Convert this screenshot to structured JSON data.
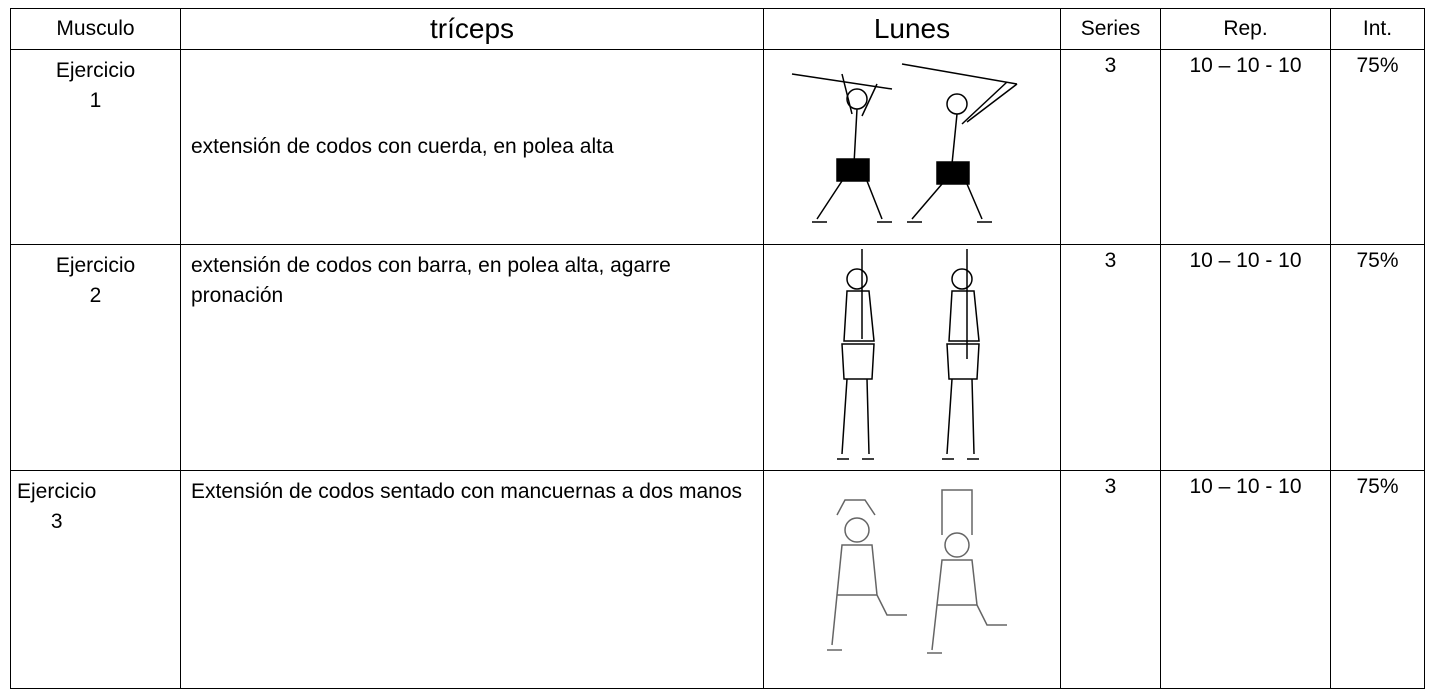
{
  "table": {
    "header": [
      "Musculo",
      "tríceps",
      "Lunes",
      "Series",
      "Rep.",
      "Int."
    ],
    "rows": [
      {
        "label": "Ejercicio 1",
        "exercise": "extensión de codos con cuerda, en polea alta",
        "series": "3",
        "rep": "10 – 10 - 10",
        "int": "75%"
      },
      {
        "label": "Ejercicio 2",
        "exercise": "extensión de codos con barra, en polea alta, agarre pronación",
        "series": "3",
        "rep": "10 – 10 - 10",
        "int": "75%"
      },
      {
        "label": "Ejercicio 3",
        "exercise": "Extensión de codos sentado con mancuernas a dos manos",
        "series": "3",
        "rep": "10 – 10 - 10",
        "int": "75%"
      }
    ]
  }
}
